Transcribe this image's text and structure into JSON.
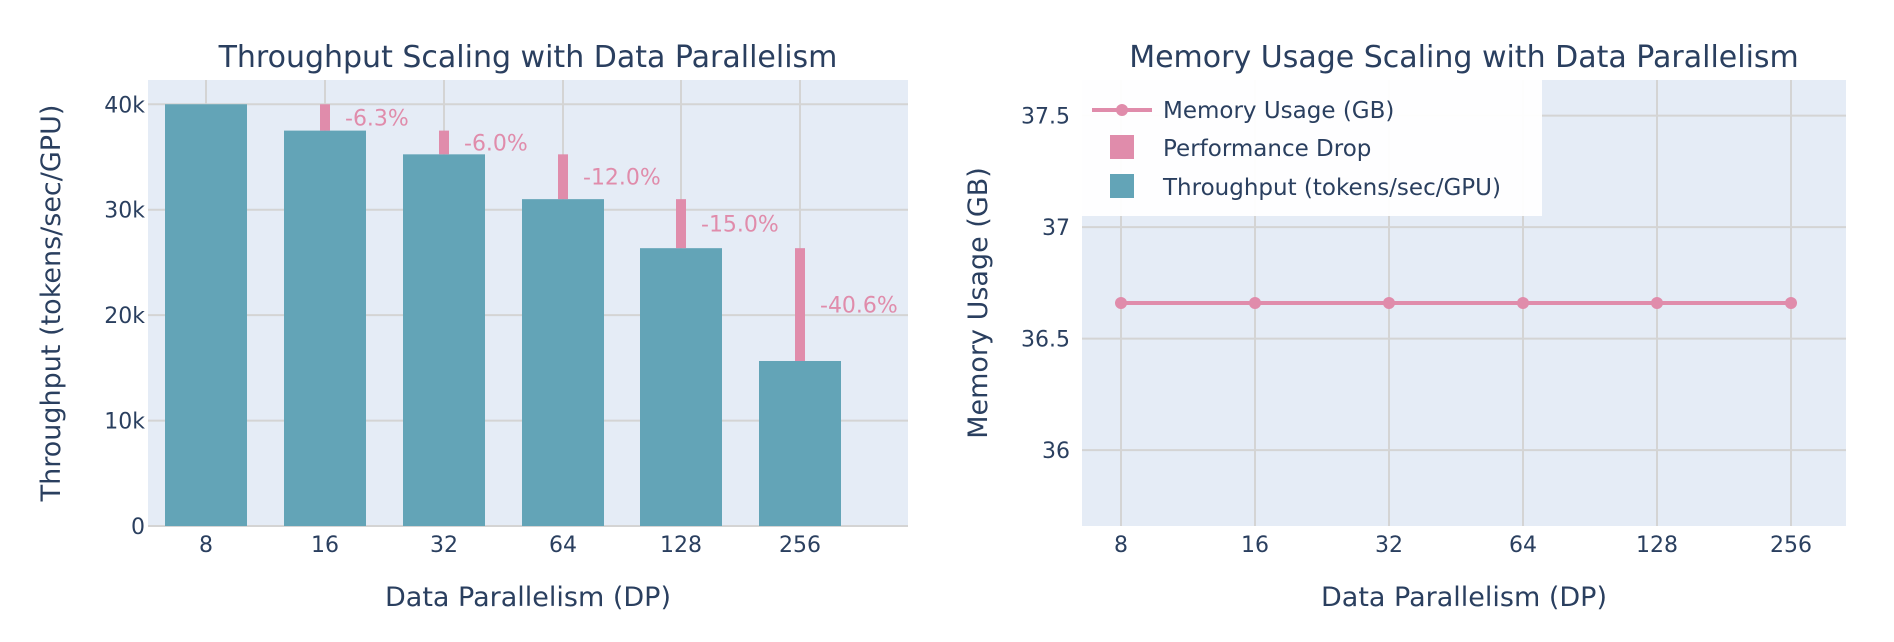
{
  "colors": {
    "plot_bg": "#e5ecf6",
    "grid": "#d4d4d4",
    "bar": "#63a4b7",
    "drop": "#e08cab",
    "line": "#e08cab",
    "text": "#2a3f5f"
  },
  "chart_data": [
    {
      "type": "bar",
      "title": "Throughput Scaling with Data Parallelism",
      "xlabel": "Data Parallelism (DP)",
      "ylabel": "Throughput (tokens/sec/GPU)",
      "categories": [
        "8",
        "16",
        "32",
        "64",
        "128",
        "256"
      ],
      "ylim": [
        0,
        42300
      ],
      "yticks": [
        0,
        10000,
        20000,
        30000,
        40000
      ],
      "ytick_labels": [
        "0",
        "10k",
        "20k",
        "30k",
        "40k"
      ],
      "grid": true,
      "series": [
        {
          "name": "Throughput (tokens/sec/GPU)",
          "values": [
            40000,
            37500,
            35250,
            31000,
            26350,
            15650
          ]
        },
        {
          "name": "Performance Drop",
          "type": "bar-range",
          "values": [
            null,
            2500,
            2250,
            4250,
            4650,
            10700
          ],
          "labels": [
            "",
            "-6.3%",
            "-6.0%",
            "-12.0%",
            "-15.0%",
            "-40.6%"
          ]
        }
      ]
    },
    {
      "type": "line",
      "title": "Memory Usage Scaling with Data Parallelism",
      "xlabel": "Data Parallelism (DP)",
      "ylabel": "Memory Usage (GB)",
      "categories": [
        "8",
        "16",
        "32",
        "64",
        "128",
        "256"
      ],
      "ylim": [
        35.66,
        37.66
      ],
      "yticks": [
        36,
        36.5,
        37,
        37.5
      ],
      "ytick_labels": [
        "36",
        "36.5",
        "37",
        "37.5"
      ],
      "grid": true,
      "series": [
        {
          "name": "Memory Usage (GB)",
          "values": [
            36.66,
            36.66,
            36.66,
            36.66,
            36.66,
            36.66
          ]
        }
      ]
    }
  ],
  "legend": {
    "placement": "top-left",
    "items": [
      {
        "label": "Memory Usage (GB)",
        "kind": "line"
      },
      {
        "label": "Performance Drop",
        "kind": "drop"
      },
      {
        "label": "Throughput (tokens/sec/GPU)",
        "kind": "bar"
      }
    ]
  }
}
